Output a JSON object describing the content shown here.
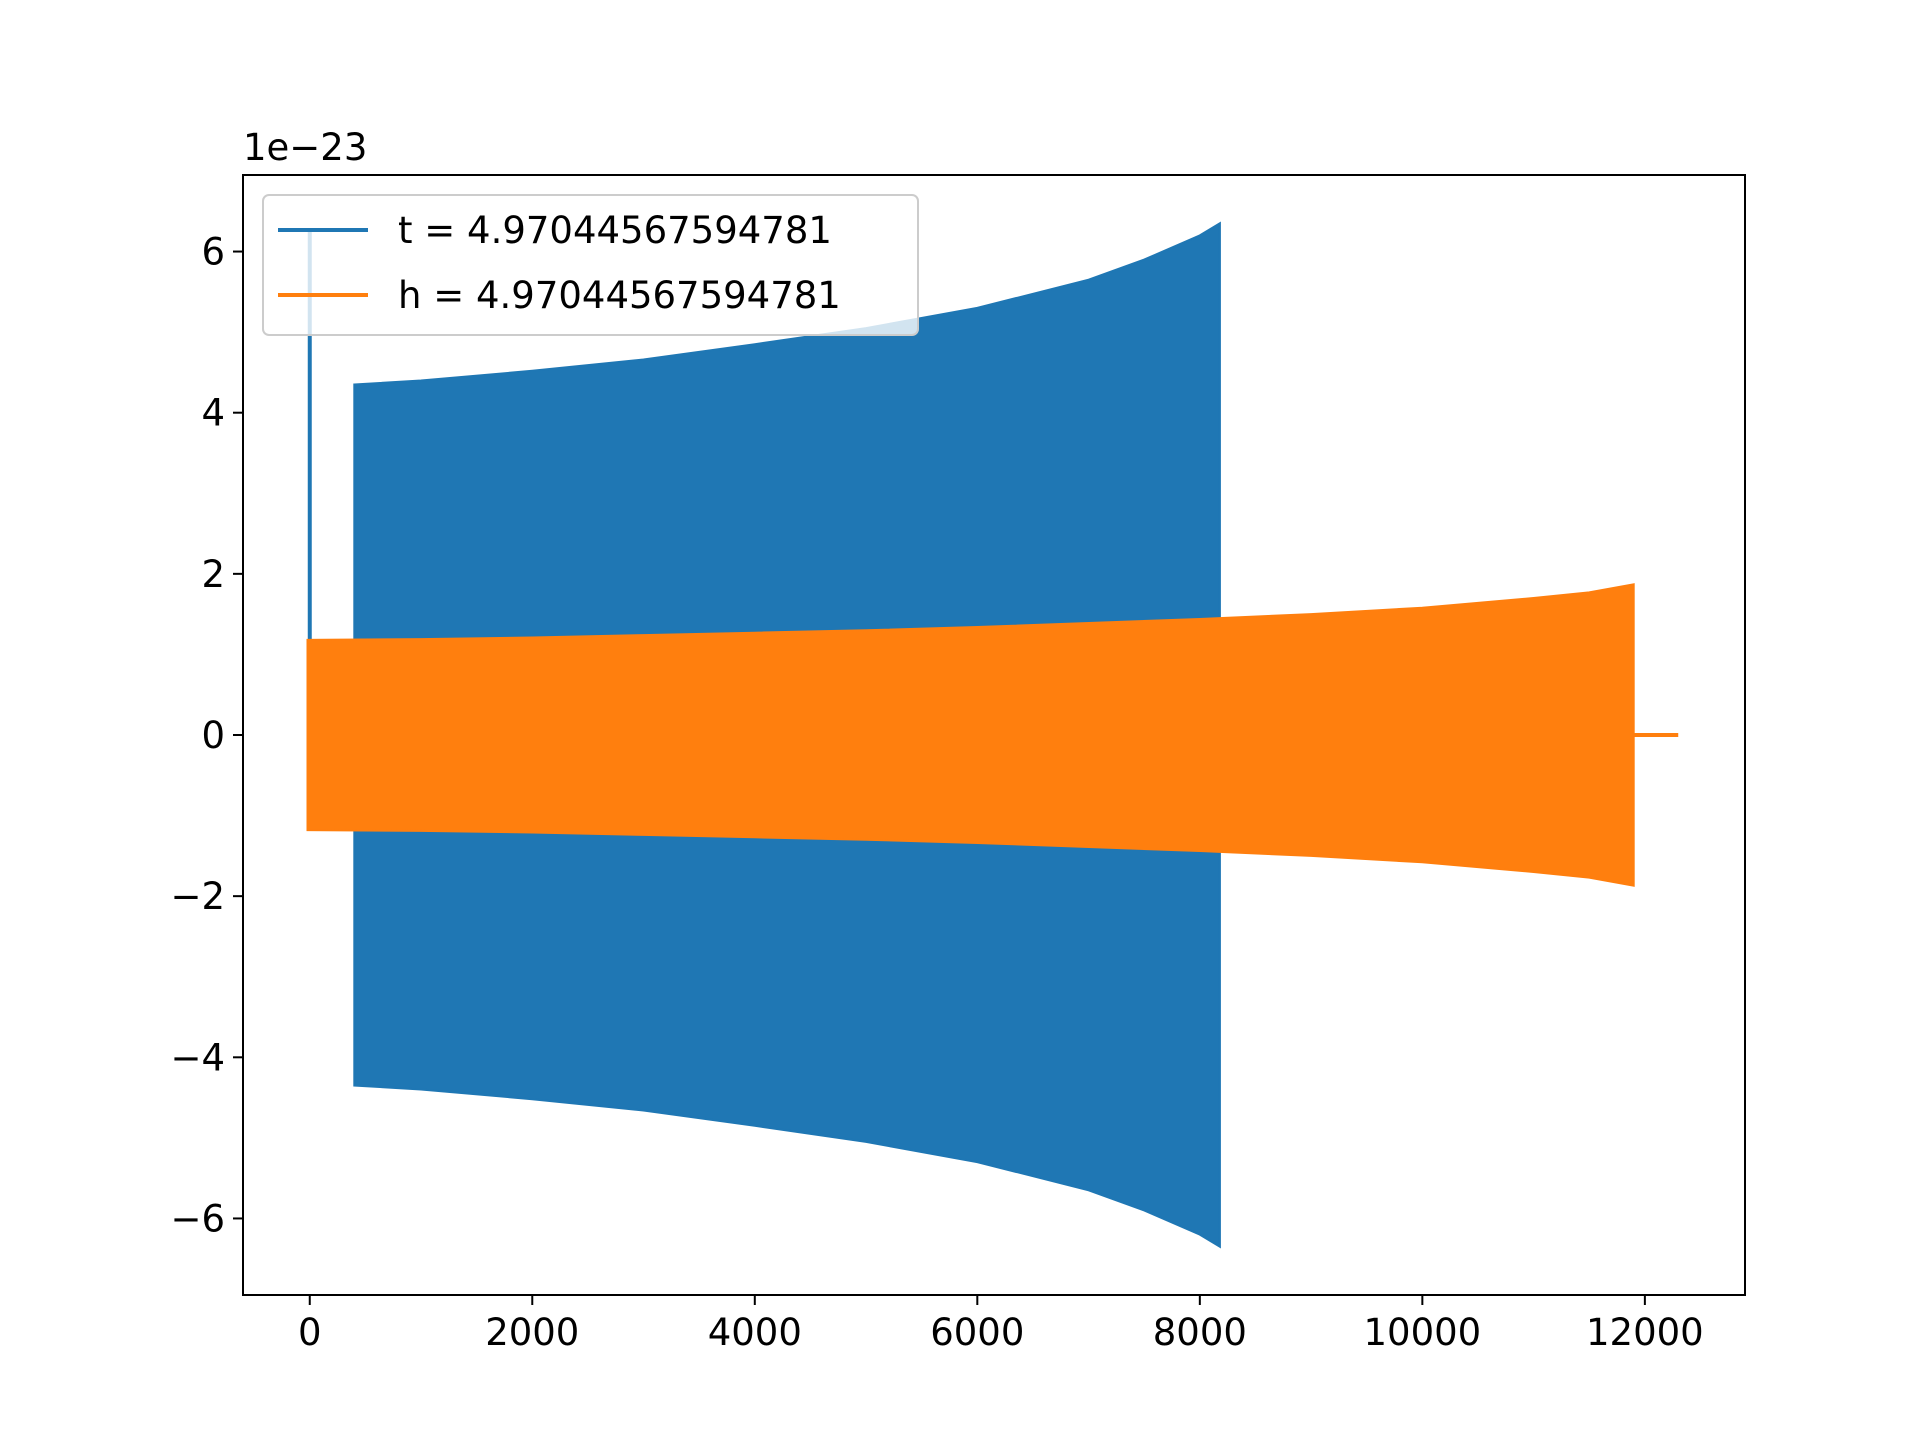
{
  "chart_data": {
    "type": "line",
    "title": "",
    "xlabel": "",
    "ylabel": "",
    "y_offset_label": "1e−23",
    "xlim": [
      -600,
      12900
    ],
    "ylim": [
      -6.95,
      6.95
    ],
    "x_ticks": [
      {
        "value": 0,
        "label": "0"
      },
      {
        "value": 2000,
        "label": "2000"
      },
      {
        "value": 4000,
        "label": "4000"
      },
      {
        "value": 6000,
        "label": "6000"
      },
      {
        "value": 8000,
        "label": "8000"
      },
      {
        "value": 10000,
        "label": "10000"
      },
      {
        "value": 12000,
        "label": "12000"
      }
    ],
    "y_ticks": [
      {
        "value": 6,
        "label": "6"
      },
      {
        "value": 4,
        "label": "4"
      },
      {
        "value": 2,
        "label": "2"
      },
      {
        "value": 0,
        "label": "0"
      },
      {
        "value": -2,
        "label": "−2"
      },
      {
        "value": -4,
        "label": "−4"
      },
      {
        "value": -6,
        "label": "−6"
      }
    ],
    "grid": false,
    "legend_position": "top-left",
    "series": [
      {
        "name": "t = 4.97044567594781",
        "color": "#1f77b4",
        "spike": {
          "x": 0,
          "y": 6.25
        },
        "envelope_x": [
          400,
          1000,
          2000,
          3000,
          4000,
          5000,
          6000,
          7000,
          7500,
          8000,
          8180
        ],
        "envelope_amplitude": [
          4.35,
          4.4,
          4.52,
          4.66,
          4.85,
          5.05,
          5.3,
          5.65,
          5.9,
          6.2,
          6.35
        ]
      },
      {
        "name": "h = 4.97044567594781",
        "color": "#ff7f0e",
        "envelope_x": [
          -20,
          1000,
          2000,
          3000,
          4000,
          5000,
          6000,
          7000,
          8000,
          9000,
          10000,
          11000,
          11500,
          11900
        ],
        "envelope_amplitude": [
          1.18,
          1.19,
          1.21,
          1.24,
          1.27,
          1.3,
          1.34,
          1.39,
          1.44,
          1.5,
          1.58,
          1.7,
          1.77,
          1.87
        ],
        "tail": {
          "x_start": 11900,
          "x_end": 12300,
          "y": 0
        }
      }
    ]
  }
}
